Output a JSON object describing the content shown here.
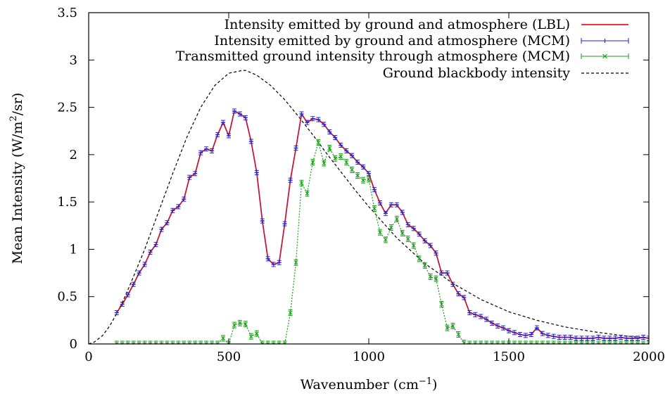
{
  "chart_data": {
    "type": "line",
    "xlabel": "Wavenumber (cm",
    "xlabel_sup": "−1",
    "xlabel_end": ")",
    "ylabel": "Mean Intensity (W/m",
    "ylabel_sup": "2",
    "ylabel_end": "/sr)",
    "xlim": [
      0,
      2000
    ],
    "ylim": [
      0,
      3.5
    ],
    "x_ticks": [
      0,
      500,
      1000,
      1500,
      2000
    ],
    "y_ticks": [
      "0",
      "0.5",
      "1",
      "1.5",
      "2",
      "2.5",
      "3",
      "3.5"
    ],
    "legend_position": "top-right",
    "series": [
      {
        "name": "Intensity emitted by ground and atmosphere (LBL)",
        "color": "#e41a1c",
        "style": "solid",
        "x": [
          100,
          120,
          140,
          160,
          180,
          200,
          220,
          240,
          260,
          280,
          300,
          320,
          340,
          360,
          380,
          400,
          420,
          440,
          460,
          480,
          500,
          520,
          540,
          560,
          580,
          600,
          620,
          640,
          660,
          680,
          700,
          720,
          740,
          760,
          780,
          800,
          820,
          840,
          860,
          880,
          900,
          920,
          940,
          960,
          980,
          1000,
          1020,
          1040,
          1060,
          1080,
          1100,
          1120,
          1140,
          1160,
          1180,
          1200,
          1220,
          1240,
          1260,
          1280,
          1300,
          1320,
          1340,
          1360,
          1380,
          1400,
          1420,
          1440,
          1460,
          1480,
          1500,
          1520,
          1540,
          1560,
          1580,
          1600,
          1620,
          1640,
          1660,
          1680,
          1700,
          1720,
          1740,
          1760,
          1780,
          1800,
          1820,
          1840,
          1860,
          1880,
          1900,
          1920,
          1940,
          1960,
          1980,
          2000
        ],
        "y": [
          0.33,
          0.42,
          0.52,
          0.63,
          0.75,
          0.84,
          0.97,
          1.05,
          1.21,
          1.28,
          1.41,
          1.45,
          1.53,
          1.76,
          1.8,
          2.02,
          2.06,
          2.04,
          2.21,
          2.34,
          2.2,
          2.46,
          2.43,
          2.39,
          2.14,
          1.81,
          1.3,
          0.9,
          0.84,
          0.86,
          1.27,
          1.73,
          2.07,
          2.43,
          2.34,
          2.38,
          2.37,
          2.32,
          2.24,
          2.18,
          2.1,
          2.04,
          1.99,
          1.92,
          1.87,
          1.8,
          1.63,
          1.49,
          1.38,
          1.47,
          1.47,
          1.39,
          1.26,
          1.22,
          1.16,
          1.09,
          1.04,
          0.96,
          0.75,
          0.75,
          0.63,
          0.53,
          0.49,
          0.33,
          0.31,
          0.29,
          0.26,
          0.22,
          0.19,
          0.17,
          0.14,
          0.12,
          0.1,
          0.09,
          0.1,
          0.17,
          0.11,
          0.09,
          0.08,
          0.07,
          0.07,
          0.07,
          0.06,
          0.06,
          0.06,
          0.06,
          0.07,
          0.06,
          0.06,
          0.06,
          0.07,
          0.06,
          0.06,
          0.06,
          0.07,
          0.06
        ]
      },
      {
        "name": "Intensity emitted by ground and atmosphere (MCM)",
        "color": "#1f1fd6",
        "style": "points-errorbars",
        "marker": "plus",
        "x": [
          100,
          120,
          140,
          160,
          180,
          200,
          220,
          240,
          260,
          280,
          300,
          320,
          340,
          360,
          380,
          400,
          420,
          440,
          460,
          480,
          500,
          520,
          540,
          560,
          580,
          600,
          620,
          640,
          660,
          680,
          700,
          720,
          740,
          760,
          780,
          800,
          820,
          840,
          860,
          880,
          900,
          920,
          940,
          960,
          980,
          1000,
          1020,
          1040,
          1060,
          1080,
          1100,
          1120,
          1140,
          1160,
          1180,
          1200,
          1220,
          1240,
          1260,
          1280,
          1300,
          1320,
          1340,
          1360,
          1380,
          1400,
          1420,
          1440,
          1460,
          1480,
          1500,
          1520,
          1540,
          1560,
          1580,
          1600,
          1620,
          1640,
          1660,
          1680,
          1700,
          1720,
          1740,
          1760,
          1780,
          1800,
          1820,
          1840,
          1860,
          1880,
          1900,
          1920,
          1940,
          1960,
          1980,
          2000
        ],
        "y": [
          0.33,
          0.42,
          0.52,
          0.63,
          0.75,
          0.84,
          0.97,
          1.05,
          1.21,
          1.28,
          1.41,
          1.45,
          1.53,
          1.76,
          1.8,
          2.02,
          2.06,
          2.04,
          2.21,
          2.34,
          2.2,
          2.46,
          2.43,
          2.39,
          2.14,
          1.81,
          1.3,
          0.9,
          0.84,
          0.86,
          1.27,
          1.73,
          2.07,
          2.43,
          2.34,
          2.38,
          2.37,
          2.32,
          2.24,
          2.18,
          2.1,
          2.04,
          1.99,
          1.92,
          1.87,
          1.8,
          1.63,
          1.49,
          1.38,
          1.47,
          1.47,
          1.39,
          1.26,
          1.22,
          1.16,
          1.09,
          1.04,
          0.96,
          0.75,
          0.75,
          0.63,
          0.53,
          0.49,
          0.33,
          0.31,
          0.29,
          0.26,
          0.22,
          0.19,
          0.17,
          0.14,
          0.12,
          0.1,
          0.09,
          0.1,
          0.17,
          0.11,
          0.09,
          0.08,
          0.07,
          0.07,
          0.07,
          0.06,
          0.06,
          0.06,
          0.06,
          0.07,
          0.06,
          0.06,
          0.06,
          0.07,
          0.06,
          0.06,
          0.06,
          0.07,
          0.06
        ]
      },
      {
        "name": "Transmitted ground intensity through atmosphere (MCM)",
        "color": "#1a9f1a",
        "style": "dotted-points-errorbars",
        "marker": "x",
        "x": [
          100,
          120,
          140,
          160,
          180,
          200,
          220,
          240,
          260,
          280,
          300,
          320,
          340,
          360,
          380,
          400,
          420,
          440,
          460,
          480,
          500,
          520,
          540,
          560,
          580,
          600,
          620,
          640,
          660,
          680,
          700,
          720,
          740,
          760,
          780,
          800,
          820,
          840,
          860,
          880,
          900,
          920,
          940,
          960,
          980,
          1000,
          1020,
          1040,
          1060,
          1080,
          1100,
          1120,
          1140,
          1160,
          1180,
          1200,
          1220,
          1240,
          1260,
          1280,
          1300,
          1320,
          1340,
          1360,
          1380,
          1400,
          1420,
          1440,
          1460,
          1480,
          1500,
          1520,
          1540,
          1560,
          1580,
          1600,
          1620,
          1640,
          1660,
          1680,
          1700,
          1720,
          1740,
          1760,
          1780,
          1800,
          1820,
          1840,
          1860,
          1880,
          1900,
          1920,
          1940,
          1960,
          1980,
          2000
        ],
        "y": [
          0,
          0,
          0,
          0,
          0,
          0,
          0,
          0,
          0,
          0,
          0,
          0,
          0,
          0,
          0,
          0,
          0,
          0,
          0,
          0.06,
          0,
          0.2,
          0.22,
          0.21,
          0.08,
          0.11,
          0,
          0,
          0,
          0,
          0,
          0.33,
          0.86,
          1.7,
          1.59,
          1.92,
          2.13,
          1.91,
          2.07,
          1.96,
          1.98,
          1.92,
          1.84,
          1.78,
          1.73,
          1.74,
          1.43,
          1.18,
          1.1,
          1.23,
          1.32,
          1.17,
          1.11,
          1.04,
          0.9,
          0.83,
          0.71,
          0.69,
          0.42,
          0.17,
          0.19,
          0.1,
          0.01,
          0,
          0,
          0,
          0,
          0,
          0,
          0,
          0,
          0,
          0,
          0,
          0,
          0,
          0,
          0,
          0,
          0,
          0,
          0,
          0,
          0,
          0,
          0,
          0,
          0,
          0,
          0,
          0,
          0,
          0,
          0,
          0,
          0
        ]
      },
      {
        "name": "Ground blackbody intensity",
        "color": "#000000",
        "style": "dashed",
        "x": [
          0,
          20,
          50,
          75,
          100,
          125,
          150,
          175,
          200,
          250,
          300,
          350,
          400,
          450,
          500,
          550,
          560,
          600,
          650,
          700,
          750,
          800,
          850,
          900,
          950,
          1000,
          1100,
          1200,
          1300,
          1400,
          1500,
          1600,
          1700,
          1800,
          1900,
          2000
        ],
        "y": [
          0,
          0.02,
          0.09,
          0.19,
          0.32,
          0.47,
          0.64,
          0.82,
          1.0,
          1.4,
          1.8,
          2.18,
          2.5,
          2.73,
          2.86,
          2.89,
          2.89,
          2.84,
          2.73,
          2.58,
          2.4,
          2.21,
          2.01,
          1.82,
          1.63,
          1.45,
          1.12,
          0.85,
          0.64,
          0.47,
          0.34,
          0.25,
          0.18,
          0.13,
          0.09,
          0.06
        ]
      }
    ]
  }
}
